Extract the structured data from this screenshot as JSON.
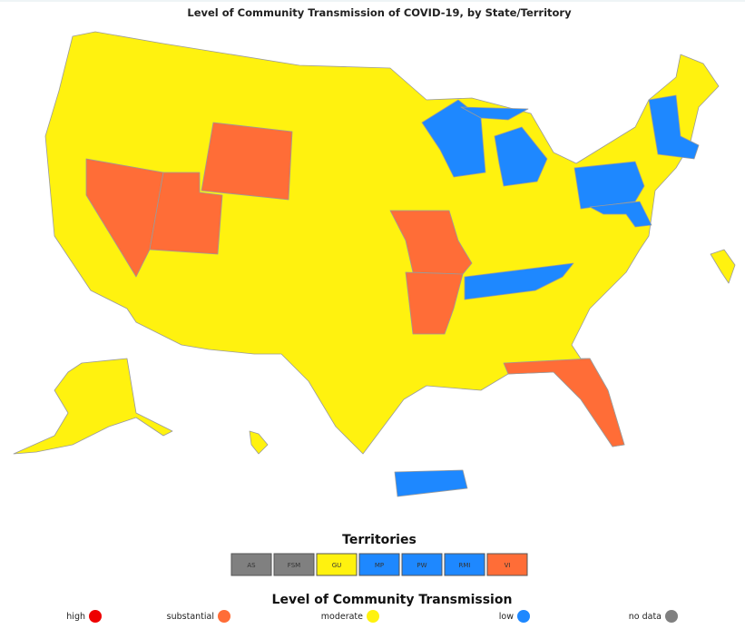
{
  "title": "Level of Community Transmission of COVID-19, by State/Territory",
  "territories_title": "Territories",
  "territories": [
    {
      "label": "AS",
      "color": "#808080"
    },
    {
      "label": "FSM",
      "color": "#808080"
    },
    {
      "label": "GU",
      "color": "#fff20f"
    },
    {
      "label": "MP",
      "color": "#1e88ff"
    },
    {
      "label": "PW",
      "color": "#1e88ff"
    },
    {
      "label": "RMI",
      "color": "#1e88ff"
    },
    {
      "label": "VI",
      "color": "#ff6d37"
    }
  ],
  "legend_title": "Level of Community Transmission",
  "legend": [
    {
      "label": "high",
      "color": "#ee0000"
    },
    {
      "label": "substantial",
      "color": "#ff6d37"
    },
    {
      "label": "moderate",
      "color": "#fff20f"
    },
    {
      "label": "low",
      "color": "#1e88ff"
    },
    {
      "label": "no data",
      "color": "#808080"
    }
  ]
}
